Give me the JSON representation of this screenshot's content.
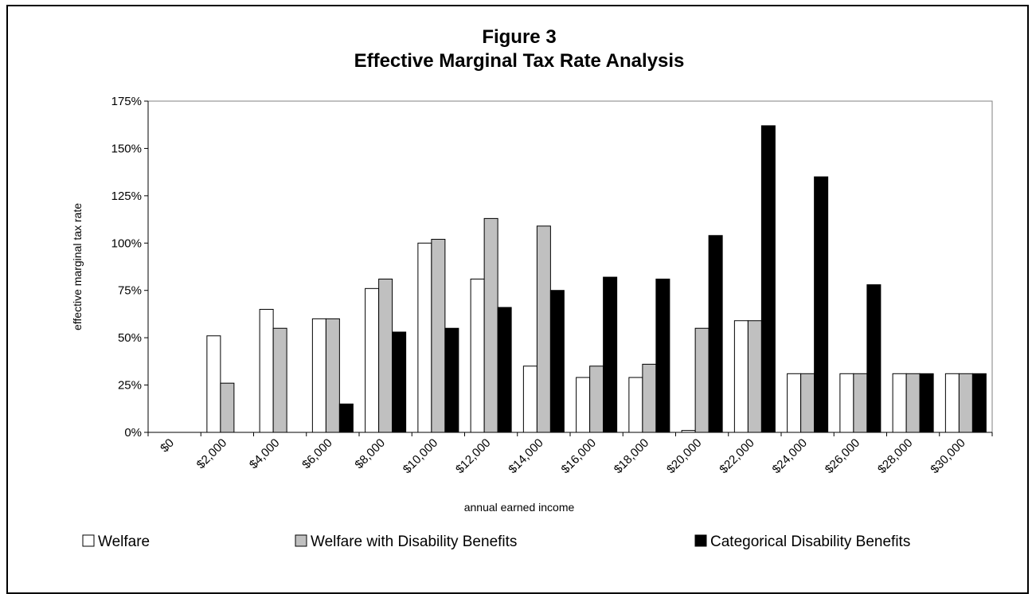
{
  "chart_data": {
    "type": "bar",
    "title": "Figure 3",
    "subtitle": "Effective Marginal Tax Rate Analysis",
    "xlabel": "annual earned income",
    "ylabel": "effective marginal tax rate",
    "ylim": [
      0,
      1.75
    ],
    "yticks": [
      "0%",
      "25%",
      "50%",
      "75%",
      "100%",
      "125%",
      "150%",
      "175%"
    ],
    "categories": [
      "$0",
      "$2,000",
      "$4,000",
      "$6,000",
      "$8,000",
      "$10,000",
      "$12,000",
      "$14,000",
      "$16,000",
      "$18,000",
      "$20,000",
      "$22,000",
      "$24,000",
      "$26,000",
      "$28,000",
      "$30,000"
    ],
    "series": [
      {
        "name": "Welfare",
        "color": "#ffffff",
        "values": [
          0,
          0.51,
          0.65,
          0.6,
          0.76,
          1.0,
          0.81,
          0.35,
          0.29,
          0.29,
          0.01,
          0.59,
          0.31,
          0.31,
          0.31,
          0.31
        ]
      },
      {
        "name": "Welfare with Disability Benefits",
        "color": "#c0c0c0",
        "values": [
          0,
          0.26,
          0.55,
          0.6,
          0.81,
          1.02,
          1.13,
          1.09,
          0.35,
          0.36,
          0.55,
          0.59,
          0.31,
          0.31,
          0.31,
          0.31
        ]
      },
      {
        "name": "Categorical Disability Benefits",
        "color": "#000000",
        "values": [
          0,
          0,
          0,
          0.15,
          0.53,
          0.55,
          0.66,
          0.75,
          0.82,
          0.81,
          1.04,
          1.62,
          1.35,
          0.78,
          0.31,
          0.31
        ]
      }
    ],
    "grid": false,
    "legend": "bottom"
  }
}
